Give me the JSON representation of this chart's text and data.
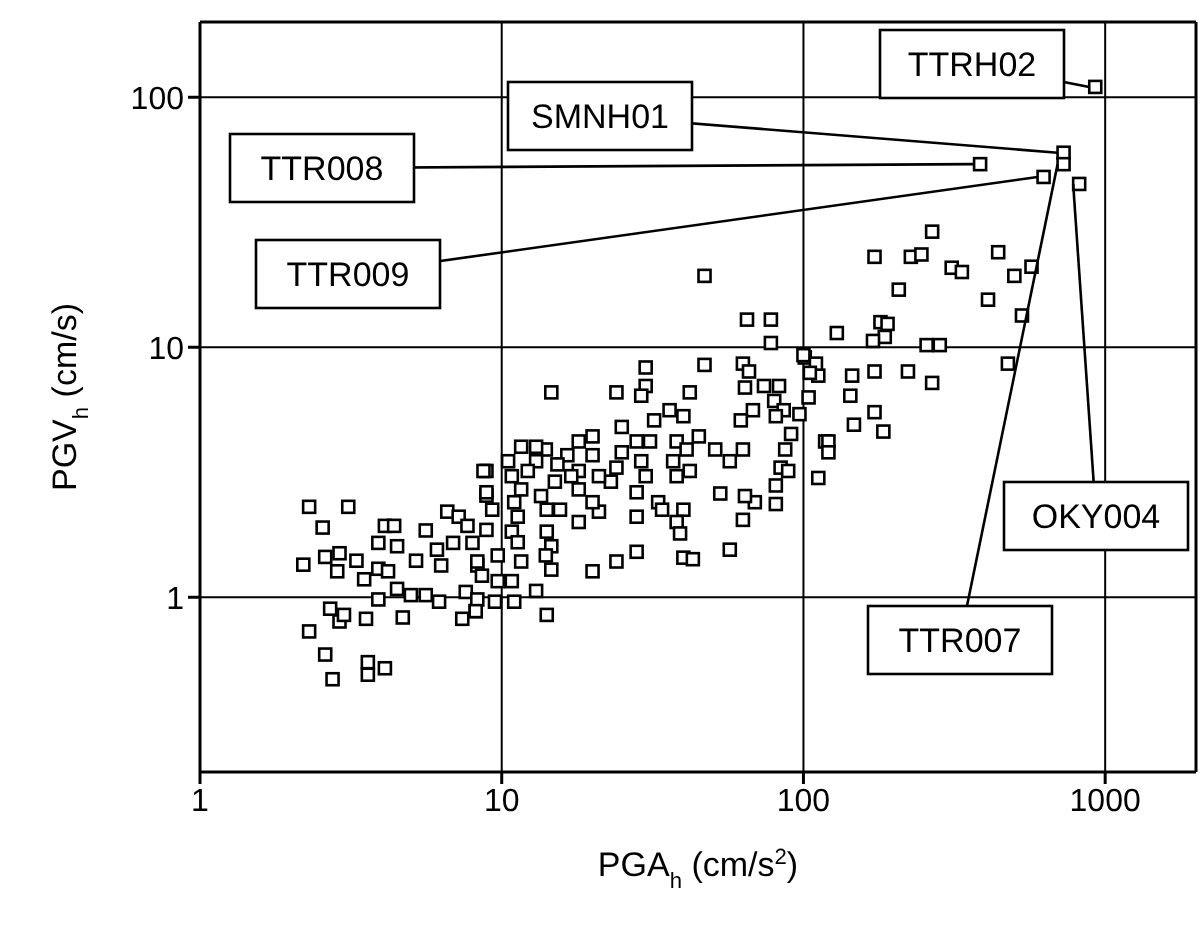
{
  "chart_data": {
    "type": "scatter",
    "xlabel": "PGA$_{h}$ (cm/s$^{2}$)",
    "ylabel": "PGV$_{h}$ (cm/s)",
    "log": "xy",
    "grid": true,
    "marker": "square",
    "xlim": [
      1,
      2000
    ],
    "ylim": [
      0.2,
      200
    ],
    "xticks": [
      1,
      10,
      100,
      1000
    ],
    "yticks": [
      1,
      10,
      100
    ],
    "series": [
      {
        "color": "#000000",
        "x": [
          2.3,
          3.1,
          2.55,
          2.2,
          2.6,
          2.9,
          3.3,
          2.85,
          2.7,
          2.3,
          2.6,
          2.75,
          3.6,
          3.6,
          4.1,
          2.9,
          3.0,
          3.55,
          3.9,
          4.7,
          3.5,
          3.9,
          4.2,
          4.5,
          3.9,
          4.1,
          4.4,
          4.5,
          5.2,
          5.6,
          6.1,
          6.3,
          5.0,
          5.6,
          6.2,
          7.4,
          8.2,
          7.6,
          6.6,
          7.2,
          7.7,
          8.9,
          8.9,
          8.3,
          6.9,
          8,
          65,
          78,
          78,
          30,
          30,
          29,
          47,
          63,
          66,
          64,
          74,
          83,
          80,
          86,
          68,
          62,
          81,
          101,
          112,
          104,
          97,
          91,
          87,
          84,
          89,
          81,
          81,
          112,
          118,
          69,
          64,
          63,
          53,
          57,
          63,
          57,
          51,
          45,
          42,
          40,
          36,
          32,
          38,
          41,
          37,
          38,
          42,
          33,
          34,
          40,
          38,
          39,
          40,
          43,
          28,
          28,
          28,
          30,
          29,
          31,
          28,
          25,
          24,
          25,
          24,
          23,
          21,
          21,
          18,
          20,
          18,
          18,
          20,
          18,
          20,
          24,
          20,
          14.6,
          16.5,
          17,
          15.3,
          15,
          14,
          13,
          11.6,
          13,
          12.2,
          13.5,
          11.6,
          10.8,
          10.5,
          11,
          11.3,
          10.8,
          11.3,
          14.1,
          15.6,
          14.1,
          14.6,
          14,
          14.6,
          11.6,
          10.8,
          9.7,
          13,
          11,
          9.5,
          8.3,
          8.6,
          8.3,
          9.7,
          8.9,
          8.9,
          8.7,
          9.3,
          14.1,
          8.2,
          927,
          728,
          728,
          625,
          385,
          820,
          267,
          172,
          227,
          246,
          310,
          335,
          442,
          570,
          500,
          207,
          409,
          530,
          129,
          180,
          190,
          186,
          170,
          256,
          283,
          476,
          100,
          110,
          105,
          145,
          172,
          222,
          267,
          143,
          172,
          184,
          147,
          121,
          121,
          47
        ],
        "values": [
          2.3,
          2.3,
          1.9,
          1.35,
          1.45,
          1.5,
          1.4,
          1.27,
          0.9,
          0.73,
          0.59,
          0.47,
          0.55,
          0.49,
          0.52,
          0.8,
          0.85,
          0.82,
          0.98,
          0.83,
          1.18,
          1.3,
          1.27,
          1.08,
          1.65,
          1.93,
          1.93,
          1.6,
          1.4,
          1.85,
          1.55,
          1.34,
          1.02,
          1.02,
          0.96,
          0.82,
          0.88,
          1.05,
          2.2,
          2.1,
          1.93,
          3.2,
          2.55,
          1.34,
          1.65,
          1.65,
          12.9,
          12.9,
          10.4,
          8.3,
          7,
          6.4,
          8.5,
          8.6,
          8,
          6.9,
          7,
          7,
          6.1,
          5.6,
          5.6,
          5.1,
          5.3,
          9.1,
          7.7,
          6.3,
          5.4,
          4.5,
          3.9,
          3.3,
          3.2,
          2.8,
          2.36,
          3,
          4.2,
          2.4,
          2.54,
          2.04,
          2.6,
          1.55,
          3.9,
          3.5,
          3.9,
          4.4,
          6.6,
          5.3,
          5.6,
          5.1,
          4.2,
          3.9,
          3.5,
          3.05,
          3.2,
          2.4,
          2.24,
          2.24,
          2,
          1.8,
          1.44,
          1.42,
          1.52,
          2.1,
          2.63,
          3.05,
          3.5,
          4.2,
          4.2,
          4.8,
          6.6,
          3.8,
          3.3,
          2.9,
          3.05,
          2.2,
          2,
          2.4,
          2.7,
          3.2,
          4.4,
          4.2,
          3.7,
          1.39,
          1.27,
          6.6,
          3.7,
          3.05,
          3.4,
          2.9,
          3.9,
          3.5,
          4,
          4,
          3.2,
          2.54,
          2.7,
          3.05,
          3.5,
          2.4,
          2.1,
          1.83,
          1.66,
          2.24,
          2.24,
          1.83,
          1.6,
          1.47,
          1.29,
          1.39,
          1.16,
          1.16,
          1.06,
          0.96,
          0.96,
          0.98,
          1.22,
          1.39,
          1.47,
          1.86,
          2.63,
          3.2,
          2.24,
          0.85,
          0.88,
          110,
          60,
          54,
          48,
          54,
          45,
          29,
          23,
          23,
          23.5,
          20.8,
          20,
          24,
          21,
          19.3,
          17,
          15.5,
          13.4,
          11.4,
          12.6,
          12.4,
          11,
          10.6,
          10.2,
          10.2,
          8.6,
          9.3,
          8.6,
          7.9,
          7.7,
          8,
          8,
          7.2,
          6.4,
          5.5,
          4.6,
          4.9,
          4.2,
          3.8,
          19.3
        ]
      }
    ],
    "annotations": [
      {
        "text": "TTRH02",
        "x": 927,
        "y": 110
      },
      {
        "text": "SMNH01",
        "x": 728,
        "y": 60
      },
      {
        "text": "TTR008",
        "x": 385,
        "y": 54
      },
      {
        "text": "TTR009",
        "x": 625,
        "y": 48
      },
      {
        "text": "OKY004",
        "x": 820,
        "y": 45
      },
      {
        "text": "TTR007",
        "x": 728,
        "y": 54
      }
    ]
  }
}
